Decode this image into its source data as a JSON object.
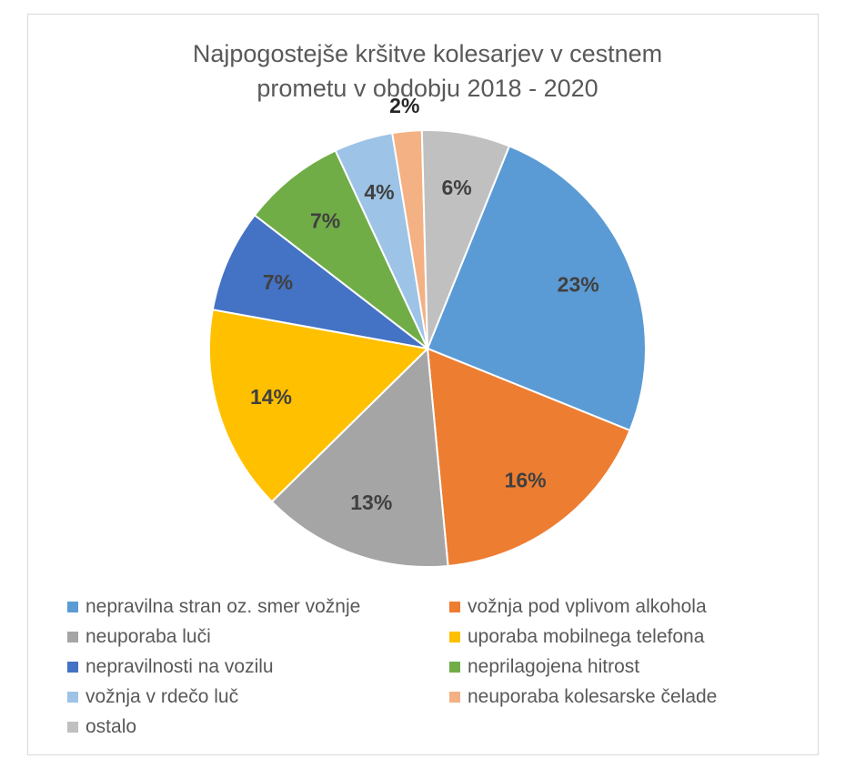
{
  "chart_data": {
    "type": "pie",
    "title_lines": [
      "Najpogostejše kršitve kolesarjev v cestnem",
      "prometu v obdobju 2018 - 2020"
    ],
    "slices": [
      {
        "label": "nepravilna stran oz. smer vožnje",
        "value": 23,
        "data_label": "23%",
        "color": "#5b9bd5"
      },
      {
        "label": "vožnja pod vplivom alkohola",
        "value": 16,
        "data_label": "16%",
        "color": "#ed7d31"
      },
      {
        "label": "neuporaba luči",
        "value": 13,
        "data_label": "13%",
        "color": "#a5a5a5"
      },
      {
        "label": "uporaba mobilnega telefona",
        "value": 14,
        "data_label": "14%",
        "color": "#ffc000"
      },
      {
        "label": "nepravilnosti na vozilu",
        "value": 7,
        "data_label": "7%",
        "color": "#4472c4"
      },
      {
        "label": "neprilagojena hitrost",
        "value": 7,
        "data_label": "7%",
        "color": "#70ad47"
      },
      {
        "label": "vožnja v rdečo luč",
        "value": 4,
        "data_label": "4%",
        "color": "#9dc3e6"
      },
      {
        "label": "neuporaba kolesarske čelade",
        "value": 2,
        "data_label": "2%",
        "color": "#f4b183"
      },
      {
        "label": "ostalo",
        "value": 6,
        "data_label": "6%",
        "color": "#c0c0c0"
      }
    ],
    "legend_position": "bottom",
    "start_angle_deg": 22,
    "direction": "clockwise"
  }
}
